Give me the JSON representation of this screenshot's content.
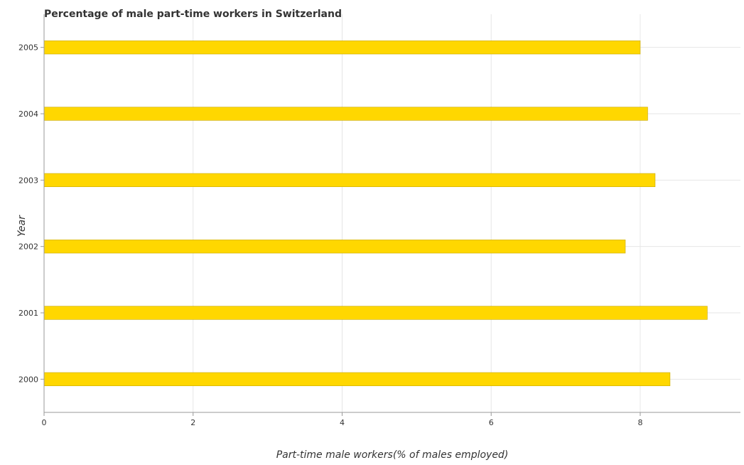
{
  "chart_data": {
    "type": "bar",
    "orientation": "horizontal",
    "title": "Percentage of male part-time workers in Switzerland",
    "xlabel": "Part-time male workers(% of males employed)",
    "ylabel": "Year",
    "categories": [
      "2000",
      "2001",
      "2002",
      "2003",
      "2004",
      "2005"
    ],
    "values": [
      8.4,
      8.9,
      7.8,
      8.2,
      8.1,
      8.0
    ],
    "xlim": [
      0,
      9.345
    ],
    "xticks": [
      0,
      2,
      4,
      6,
      8
    ],
    "grid": true,
    "bar_color": "#ffd700",
    "bar_edge_color": "#c8a800"
  }
}
